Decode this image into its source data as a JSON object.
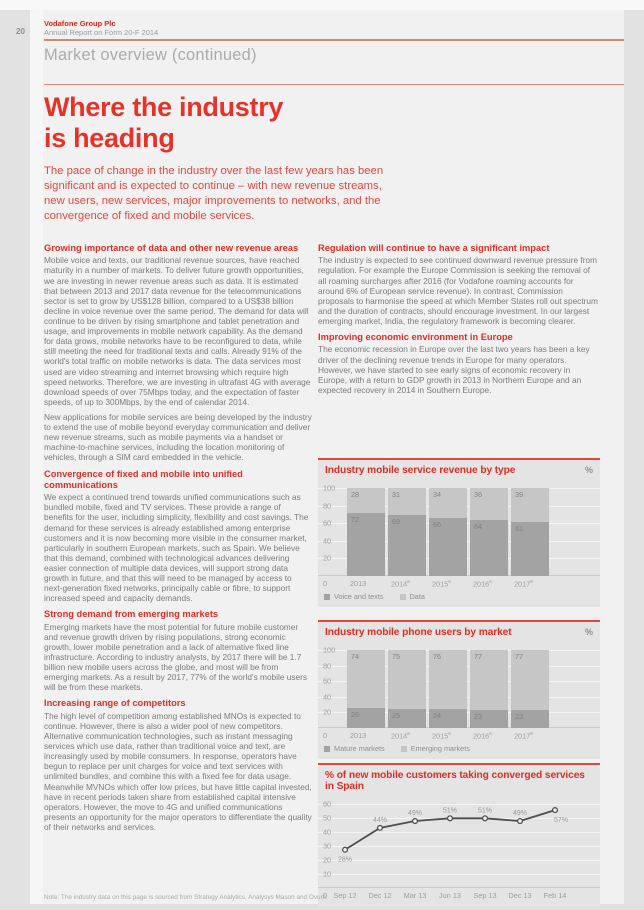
{
  "page": {
    "number": "20",
    "brand": "Vodafone Group Plc",
    "report": "Annual Report on Form 20-F 2014",
    "section": "Market overview (continued)"
  },
  "hero": {
    "title_line1": "Where the industry",
    "title_line2": "is heading",
    "intro": "The pace of change in the industry over the last few years has been significant and is expected to continue – with new revenue streams, new users, new services, major improvements to networks, and the convergence of fixed and mobile services."
  },
  "columns": {
    "left": [
      {
        "heading": "Growing importance of data and other new revenue areas",
        "paragraphs": [
          "Mobile voice and texts, our traditional revenue sources, have reached maturity in a number of markets. To deliver future growth opportunities, we are investing in newer revenue areas such as data. It is estimated that between 2013 and 2017 data revenue for the telecommunications sector is set to grow by US$128 billion, compared to a US$38 billion decline in voice revenue over the same period. The demand for data will continue to be driven by rising smartphone and tablet penetration and usage, and improvements in mobile network capability. As the demand for data grows, mobile networks have to be reconfigured to data, while still meeting the need for traditional texts and calls. Already 91% of the world's total traffic on mobile networks is data. The data services most used are video streaming and internet browsing which require high speed networks. Therefore, we are investing in ultrafast 4G with average download speeds of over 75Mbps today, and the expectation of faster speeds, of up to 300Mbps, by the end of calendar 2014.",
          "New applications for mobile services are being developed by the industry to extend the use of mobile beyond everyday communication and deliver new revenue streams, such as mobile payments via a handset or machine-to-machine services, including the location monitoring of vehicles, through a SIM card embedded in the vehicle."
        ]
      },
      {
        "heading": "Convergence of fixed and mobile into unified communications",
        "paragraphs": [
          "We expect a continued trend towards unified communications such as bundled mobile, fixed and TV services. These provide a range of benefits for the user, including simplicity, flexibility and cost savings. The demand for these services is already established among enterprise customers and it is now becoming more visible in the consumer market, particularly in southern European markets, such as Spain. We believe that this demand, combined with technological advances delivering easier connection of multiple data devices, will support strong data growth in future, and that this will need to be managed by access to next-generation fixed networks, principally cable or fibre, to support increased speed and capacity demands."
        ]
      },
      {
        "heading": "Strong demand from emerging markets",
        "paragraphs": [
          "Emerging markets have the most potential for future mobile customer and revenue growth driven by rising populations, strong economic growth, lower mobile penetration and a lack of alternative fixed line infrastructure. According to industry analysts, by 2017 there will be 1.7 billion new mobile users across the globe, and most will be from emerging markets. As a result by 2017, 77% of the world's mobile users will be from these markets."
        ]
      },
      {
        "heading": "Increasing range of competitors",
        "paragraphs": [
          "The high level of competition among established MNOs is expected to continue. However, there is also a wider pool of new competitors. Alternative communication technologies, such as instant messaging services which use data, rather than traditional voice and text, are increasingly used by mobile consumers. In response, operators have begun to replace per unit charges for voice and text services with unlimited bundles, and combine this with a fixed fee for data usage. Meanwhile MVNOs which offer low prices, but have little capital invested, have in recent periods taken share from established capital intensive operators. However, the move to 4G and unified communications presents an opportunity for the major operators to differentiate the quality of their networks and services."
        ]
      }
    ],
    "right": [
      {
        "heading": "Regulation will continue to have a significant impact",
        "paragraphs": [
          "The industry is expected to see continued downward revenue pressure from regulation. For example the Europe Commission is seeking the removal of all roaming surcharges after 2016 (for Vodafone roaming accounts for around 6% of European service revenue). In contrast, Commission proposals to harmonise the speed at which Member States roll out spectrum and the duration of contracts, should encourage investment. In our largest emerging market, India, the regulatory framework is becoming clearer."
        ]
      },
      {
        "heading": "Improving economic environment in Europe",
        "paragraphs": [
          "The economic recession in Europe over the last two years has been a key driver of the declining revenue trends in Europe for many operators. However, we have started to see early signs of economic recovery in Europe, with a return to GDP growth in 2013 in Northern Europe and an expected recovery in 2014 in Southern Europe."
        ]
      }
    ]
  },
  "note": "Note: The industry data on this page is sourced from Strategy Analytics, Analysys Mason and Ovum.",
  "chart_data": [
    {
      "type": "bar",
      "stacked": true,
      "title": "Industry mobile service revenue by type",
      "unit": "%",
      "categories": [
        "2013",
        "2014e",
        "2015e",
        "2016e",
        "2017e"
      ],
      "series": [
        {
          "name": "Voice and texts",
          "values": [
            72,
            69,
            66,
            64,
            61
          ],
          "color": "#a3a3a3"
        },
        {
          "name": "Data",
          "values": [
            28,
            31,
            34,
            36,
            39
          ],
          "color": "#c6c6c6"
        }
      ],
      "ylim": [
        0,
        100
      ],
      "yticks": [
        0,
        20,
        40,
        60,
        80,
        100
      ],
      "legend_position": "bottom",
      "grid": true
    },
    {
      "type": "bar",
      "stacked": true,
      "title": "Industry mobile phone users by market",
      "unit": "%",
      "categories": [
        "2013",
        "2014e",
        "2015e",
        "2016e",
        "2017e"
      ],
      "series": [
        {
          "name": "Mature markets",
          "values": [
            26,
            25,
            24,
            23,
            23
          ],
          "color": "#a3a3a3"
        },
        {
          "name": "Emerging markets",
          "values": [
            74,
            75,
            76,
            77,
            77
          ],
          "color": "#c6c6c6"
        }
      ],
      "ylim": [
        0,
        100
      ],
      "yticks": [
        0,
        20,
        40,
        60,
        80,
        100
      ],
      "legend_position": "bottom",
      "grid": true
    },
    {
      "type": "line",
      "title": "% of new mobile customers taking converged services in Spain",
      "categories": [
        "Sep 12",
        "Dec 12",
        "Mar 13",
        "Jun 13",
        "Sep 13",
        "Dec 13",
        "Feb 14"
      ],
      "values": [
        28,
        44,
        49,
        51,
        51,
        49,
        57
      ],
      "value_suffix": "%",
      "ylim": [
        0,
        60
      ],
      "yticks": [
        0,
        10,
        20,
        30,
        40,
        50,
        60
      ],
      "line_color": "#4f4f4f",
      "grid": true
    }
  ],
  "colors": {
    "brand_red": "#e6332a",
    "rule_red": "#dd847b",
    "panel_bg": "#e4e4e4",
    "bar_dark": "#a3a3a3",
    "bar_light": "#c6c6c6",
    "body_gray": "#7c7c7c"
  }
}
